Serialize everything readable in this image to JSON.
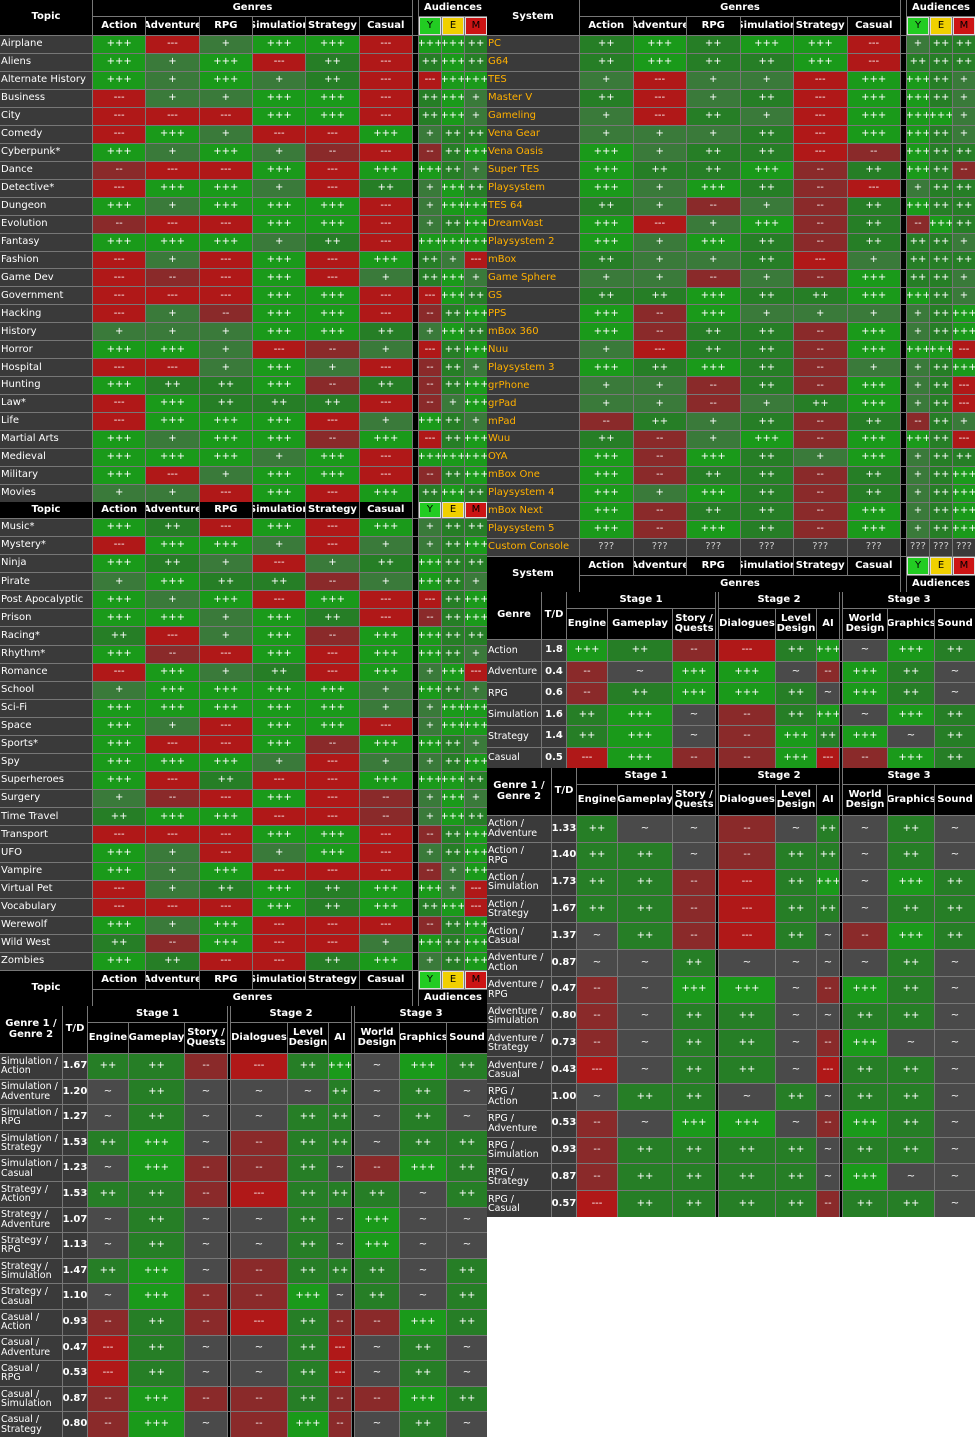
{
  "labels": {
    "topic": "Topic",
    "system": "System",
    "genres": "Genres",
    "audiences": "Audiences",
    "genre": "Genre",
    "genre12": "Genre 1 /\nGenre 2",
    "td": "T/D",
    "stage1": "Stage 1",
    "stage2": "Stage 2",
    "stage3": "Stage 3"
  },
  "genre_cols": [
    "Action",
    "Adventure",
    "RPG",
    "Simulation",
    "Strategy",
    "Casual"
  ],
  "aud_cols": [
    "Y",
    "E",
    "M"
  ],
  "dev_cols": [
    "Engine",
    "Gameplay",
    "Story /\nQuests",
    "Dialogues",
    "Level\nDesign",
    "AI",
    "World\nDesign",
    "Graphics",
    "Sound"
  ],
  "topics_a": [
    [
      "Airplane",
      "+++",
      "---",
      "+",
      "+++",
      "+++",
      "---",
      "+++",
      "+++",
      "++"
    ],
    [
      "Aliens",
      "+++",
      "+",
      "+++",
      "---",
      "++",
      "---",
      "++",
      "+++",
      "++"
    ],
    [
      "Alternate History",
      "+++",
      "+",
      "+++",
      "+",
      "++",
      "---",
      "---",
      "+++",
      "+++"
    ],
    [
      "Business",
      "---",
      "+",
      "+",
      "+++",
      "+++",
      "---",
      "++",
      "+++",
      "+"
    ],
    [
      "City",
      "---",
      "---",
      "---",
      "+++",
      "+++",
      "---",
      "++",
      "+++",
      "+"
    ],
    [
      "Comedy",
      "---",
      "+++",
      "+",
      "---",
      "---",
      "+++",
      "+",
      "++",
      "++"
    ],
    [
      "Cyberpunk*",
      "+++",
      "+",
      "+++",
      "+",
      "--",
      "---",
      "--",
      "++",
      "+++"
    ],
    [
      "Dance",
      "--",
      "---",
      "---",
      "+++",
      "---",
      "+++",
      "+++",
      "++",
      "+"
    ],
    [
      "Detective*",
      "---",
      "+++",
      "+++",
      "+",
      "---",
      "++",
      "+",
      "+++",
      "++"
    ],
    [
      "Dungeon",
      "+++",
      "+",
      "+++",
      "+++",
      "+++",
      "---",
      "+",
      "+++",
      "+++"
    ],
    [
      "Evolution",
      "--",
      "---",
      "---",
      "+++",
      "+++",
      "---",
      "+",
      "++",
      "+++"
    ],
    [
      "Fantasy",
      "+++",
      "+++",
      "+++",
      "+",
      "++",
      "---",
      "+++",
      "+++",
      "+++"
    ],
    [
      "Fashion",
      "---",
      "+",
      "---",
      "+++",
      "---",
      "+++",
      "++",
      "+",
      "---"
    ],
    [
      "Game Dev",
      "---",
      "--",
      "---",
      "+++",
      "---",
      "+",
      "++",
      "+++",
      "+"
    ],
    [
      "Government",
      "---",
      "---",
      "---",
      "+++",
      "+++",
      "---",
      "---",
      "+++",
      "++"
    ],
    [
      "Hacking",
      "---",
      "+",
      "--",
      "+++",
      "+++",
      "---",
      "--",
      "++",
      "+++"
    ],
    [
      "History",
      "+",
      "+",
      "+",
      "+++",
      "+++",
      "++",
      "+",
      "+++",
      "++"
    ],
    [
      "Horror",
      "+++",
      "+++",
      "+",
      "---",
      "--",
      "+",
      "---",
      "++",
      "+++"
    ],
    [
      "Hospital",
      "---",
      "---",
      "+",
      "+++",
      "+",
      "---",
      "--",
      "++",
      "+"
    ],
    [
      "Hunting",
      "+++",
      "++",
      "++",
      "+++",
      "--",
      "++",
      "--",
      "++",
      "+++"
    ],
    [
      "Law*",
      "---",
      "+++",
      "++",
      "++",
      "++",
      "---",
      "--",
      "+",
      "+++"
    ],
    [
      "Life",
      "---",
      "+++",
      "+++",
      "+++",
      "---",
      "+",
      "+++",
      "++",
      "+"
    ],
    [
      "Martial Arts",
      "+++",
      "+",
      "+++",
      "+++",
      "--",
      "+++",
      "---",
      "++",
      "+++"
    ],
    [
      "Medieval",
      "+++",
      "+++",
      "+++",
      "+",
      "+++",
      "---",
      "+++",
      "+++",
      "+++"
    ],
    [
      "Military",
      "+++",
      "---",
      "+",
      "+++",
      "+++",
      "---",
      "--",
      "++",
      "+++"
    ],
    [
      "Movies",
      "+",
      "+",
      "---",
      "+++",
      "---",
      "+++",
      "++",
      "+++",
      "++"
    ]
  ],
  "topics_b": [
    [
      "Music*",
      "+++",
      "++",
      "---",
      "+++",
      "---",
      "+++",
      "+",
      "++",
      "++"
    ],
    [
      "Mystery*",
      "---",
      "+++",
      "+++",
      "+",
      "---",
      "+",
      "+",
      "++",
      "+++"
    ],
    [
      "Ninja",
      "+++",
      "++",
      "+",
      "---",
      "+",
      "++",
      "+++",
      "++",
      "++"
    ],
    [
      "Pirate",
      "+",
      "+++",
      "++",
      "++",
      "--",
      "+",
      "+++",
      "++",
      "+"
    ],
    [
      "Post Apocalyptic",
      "+++",
      "+",
      "+++",
      "---",
      "+++",
      "---",
      "---",
      "++",
      "+++"
    ],
    [
      "Prison",
      "+++",
      "+++",
      "+",
      "+++",
      "++",
      "---",
      "--",
      "++",
      "+++"
    ],
    [
      "Racing*",
      "++",
      "---",
      "+",
      "+++",
      "--",
      "+++",
      "+++",
      "++",
      "++"
    ],
    [
      "Rhythm*",
      "+++",
      "--",
      "---",
      "+++",
      "---",
      "+++",
      "+++",
      "++",
      "+"
    ],
    [
      "Romance",
      "---",
      "+++",
      "+",
      "++",
      "---",
      "+++",
      "+",
      "+++",
      "---"
    ],
    [
      "School",
      "+",
      "+++",
      "+++",
      "+++",
      "+++",
      "+",
      "+++",
      "++",
      "+"
    ],
    [
      "Sci-Fi",
      "+++",
      "+++",
      "+++",
      "+++",
      "+++",
      "+",
      "+",
      "+++",
      "+++"
    ],
    [
      "Space",
      "+++",
      "+",
      "---",
      "+++",
      "+++",
      "---",
      "+",
      "+++",
      "+++"
    ],
    [
      "Sports*",
      "+++",
      "---",
      "---",
      "+++",
      "--",
      "+++",
      "+++",
      "++",
      "+"
    ],
    [
      "Spy",
      "+++",
      "+++",
      "+++",
      "+",
      "---",
      "+",
      "+",
      "++",
      "+++"
    ],
    [
      "Superheroes",
      "+++",
      "---",
      "++",
      "---",
      "---",
      "+++",
      "+++",
      "+++",
      "++"
    ],
    [
      "Surgery",
      "+",
      "--",
      "---",
      "+++",
      "---",
      "--",
      "+",
      "+++",
      "+"
    ],
    [
      "Time Travel",
      "++",
      "+++",
      "+++",
      "---",
      "---",
      "--",
      "+",
      "+++",
      "++"
    ],
    [
      "Transport",
      "---",
      "---",
      "---",
      "+++",
      "+++",
      "---",
      "--",
      "++",
      "+++"
    ],
    [
      "UFO",
      "+++",
      "+",
      "---",
      "+",
      "+++",
      "---",
      "+",
      "++",
      "+++"
    ],
    [
      "Vampire",
      "+++",
      "+",
      "+++",
      "---",
      "---",
      "---",
      "--",
      "+",
      "+++"
    ],
    [
      "Virtual Pet",
      "---",
      "+",
      "++",
      "+++",
      "++",
      "+++",
      "+++",
      "+",
      "---"
    ],
    [
      "Vocabulary",
      "---",
      "---",
      "---",
      "+++",
      "++",
      "+++",
      "++",
      "+++",
      "---"
    ],
    [
      "Werewolf",
      "+++",
      "+",
      "+++",
      "---",
      "---",
      "---",
      "--",
      "++",
      "+++"
    ],
    [
      "Wild West",
      "++",
      "--",
      "+++",
      "---",
      "---",
      "+",
      "+++",
      "++",
      "+++"
    ],
    [
      "Zombies",
      "+++",
      "++",
      "---",
      "---",
      "++",
      "+++",
      "+",
      "++",
      "+++"
    ]
  ],
  "systems": [
    [
      "PC",
      "++",
      "+++",
      "++",
      "+++",
      "+++",
      "---",
      "+",
      "++",
      "++"
    ],
    [
      "G64",
      "++",
      "+++",
      "++",
      "++",
      "+++",
      "---",
      "++",
      "++",
      "++"
    ],
    [
      "TES",
      "+",
      "---",
      "+",
      "+",
      "---",
      "+++",
      "+++",
      "++",
      "+"
    ],
    [
      "Master V",
      "++",
      "---",
      "+",
      "++",
      "---",
      "+++",
      "+++",
      "++",
      "+"
    ],
    [
      "Gameling",
      "+",
      "---",
      "++",
      "+",
      "---",
      "+++",
      "+++",
      "+++",
      "+"
    ],
    [
      "Vena Gear",
      "+",
      "+",
      "+",
      "++",
      "---",
      "+++",
      "+++",
      "++",
      "+"
    ],
    [
      "Vena Oasis",
      "+++",
      "+",
      "++",
      "++",
      "---",
      "--",
      "+++",
      "++",
      "++"
    ],
    [
      "Super TES",
      "+++",
      "++",
      "++",
      "+++",
      "--",
      "++",
      "+++",
      "++",
      "--"
    ],
    [
      "Playsystem",
      "+++",
      "+",
      "+++",
      "++",
      "--",
      "---",
      "+",
      "++",
      "++"
    ],
    [
      "TES 64",
      "++",
      "+",
      "--",
      "+",
      "--",
      "++",
      "+++",
      "++",
      "++"
    ],
    [
      "DreamVast",
      "+++",
      "---",
      "+",
      "+++",
      "--",
      "++",
      "--",
      "+++",
      "++"
    ],
    [
      "Playsystem 2",
      "+++",
      "+",
      "+++",
      "++",
      "--",
      "++",
      "++",
      "++",
      "+"
    ],
    [
      "mBox",
      "++",
      "+",
      "+",
      "++",
      "---",
      "+",
      "++",
      "++",
      "++"
    ],
    [
      "Game Sphere",
      "+",
      "+",
      "--",
      "+",
      "--",
      "+++",
      "++",
      "++",
      "+"
    ],
    [
      "GS",
      "++",
      "++",
      "+++",
      "++",
      "++",
      "+++",
      "+++",
      "++",
      "+"
    ],
    [
      "PPS",
      "+++",
      "--",
      "+++",
      "+",
      "+",
      "+",
      "+",
      "++",
      "+++"
    ],
    [
      "mBox 360",
      "+++",
      "--",
      "++",
      "++",
      "--",
      "+++",
      "+",
      "++",
      "+++"
    ],
    [
      "Nuu",
      "+",
      "---",
      "++",
      "++",
      "--",
      "+++",
      "+++",
      "+++",
      "---"
    ],
    [
      "Playsystem 3",
      "+++",
      "++",
      "+++",
      "++",
      "--",
      "+",
      "+",
      "++",
      "+++"
    ],
    [
      "grPhone",
      "+",
      "+",
      "--",
      "++",
      "--",
      "+++",
      "+",
      "++",
      "---"
    ],
    [
      "grPad",
      "+",
      "+",
      "--",
      "+",
      "++",
      "+++",
      "+",
      "++",
      "---"
    ],
    [
      "mPad",
      "--",
      "++",
      "+",
      "++",
      "--",
      "++",
      "--",
      "++",
      "+"
    ],
    [
      "Wuu",
      "++",
      "--",
      "+",
      "+++",
      "--",
      "+++",
      "+++",
      "++",
      "---"
    ],
    [
      "OYA",
      "+++",
      "--",
      "+++",
      "++",
      "+",
      "+++",
      "+",
      "++",
      "++"
    ],
    [
      "mBox One",
      "+++",
      "--",
      "++",
      "++",
      "--",
      "++",
      "+",
      "++",
      "+++"
    ],
    [
      "Playsystem 4",
      "+++",
      "+",
      "+++",
      "++",
      "--",
      "++",
      "+",
      "++",
      "+++"
    ],
    [
      "mBox Next",
      "+++",
      "--",
      "++",
      "++",
      "--",
      "+++",
      "+",
      "++",
      "+++"
    ],
    [
      "Playsystem 5",
      "+++",
      "--",
      "+++",
      "++",
      "--",
      "+++",
      "+",
      "++",
      "+++"
    ],
    [
      "Custom Console",
      "???",
      "???",
      "???",
      "???",
      "???",
      "???",
      "???",
      "???",
      "???"
    ]
  ],
  "single_genres": [
    [
      "Action",
      "1.8",
      "+++",
      "++",
      "--",
      "---",
      "++",
      "+++",
      "~",
      "+++",
      "++"
    ],
    [
      "Adventure",
      "0.4",
      "--",
      "~",
      "+++",
      "+++",
      "~",
      "--",
      "+++",
      "++",
      "~"
    ],
    [
      "RPG",
      "0.6",
      "--",
      "++",
      "+++",
      "+++",
      "++",
      "~",
      "+++",
      "++",
      "~"
    ],
    [
      "Simulation",
      "1.6",
      "++",
      "+++",
      "~",
      "--",
      "++",
      "+++",
      "~",
      "+++",
      "++"
    ],
    [
      "Strategy",
      "1.4",
      "++",
      "+++",
      "~",
      "--",
      "+++",
      "++",
      "+++",
      "~",
      "++"
    ],
    [
      "Casual",
      "0.5",
      "---",
      "+++",
      "--",
      "--",
      "+++",
      "---",
      "--",
      "+++",
      "++"
    ]
  ],
  "combos_right": [
    [
      "Action /\nAdventure",
      "1.33",
      "++",
      "~",
      "~",
      "--",
      "~",
      "++",
      "~",
      "++",
      "~"
    ],
    [
      "Action /\nRPG",
      "1.40",
      "++",
      "++",
      "~",
      "--",
      "++",
      "++",
      "~",
      "++",
      "~"
    ],
    [
      "Action /\nSimulation",
      "1.73",
      "++",
      "++",
      "--",
      "---",
      "++",
      "+++",
      "~",
      "+++",
      "++"
    ],
    [
      "Action /\nStrategy",
      "1.67",
      "++",
      "++",
      "--",
      "---",
      "++",
      "++",
      "~",
      "++",
      "++"
    ],
    [
      "Action /\nCasual",
      "1.37",
      "~",
      "++",
      "--",
      "---",
      "++",
      "~",
      "--",
      "+++",
      "++"
    ],
    [
      "Adventure /\nAction",
      "0.87",
      "~",
      "~",
      "++",
      "~",
      "~",
      "~",
      "~",
      "++",
      "~"
    ],
    [
      "Adventure /\nRPG",
      "0.47",
      "--",
      "~",
      "+++",
      "+++",
      "~",
      "--",
      "+++",
      "++",
      "~"
    ],
    [
      "Adventure /\nSimulation",
      "0.80",
      "--",
      "~",
      "++",
      "++",
      "~",
      "~",
      "++",
      "++",
      "~"
    ],
    [
      "Adventure /\nStrategy",
      "0.73",
      "--",
      "~",
      "++",
      "++",
      "~",
      "--",
      "+++",
      "~",
      "~"
    ],
    [
      "Adventure /\nCasual",
      "0.43",
      "---",
      "~",
      "++",
      "++",
      "~",
      "---",
      "++",
      "++",
      "~"
    ],
    [
      "RPG /\nAction",
      "1.00",
      "~",
      "++",
      "++",
      "~",
      "++",
      "~",
      "++",
      "++",
      "~"
    ],
    [
      "RPG /\nAdventure",
      "0.53",
      "--",
      "~",
      "+++",
      "+++",
      "~",
      "--",
      "+++",
      "++",
      "~"
    ],
    [
      "RPG /\nSimulation",
      "0.93",
      "--",
      "++",
      "++",
      "++",
      "++",
      "~",
      "++",
      "++",
      "~"
    ],
    [
      "RPG /\nStrategy",
      "0.87",
      "--",
      "++",
      "++",
      "++",
      "++",
      "~",
      "+++",
      "~",
      "~"
    ],
    [
      "RPG /\nCasual",
      "0.57",
      "---",
      "++",
      "++",
      "++",
      "++",
      "--",
      "++",
      "++",
      "~"
    ]
  ],
  "combos_left": [
    [
      "Simulation /\nAction",
      "1.67",
      "++",
      "++",
      "--",
      "---",
      "++",
      "+++",
      "~",
      "+++",
      "++"
    ],
    [
      "Simulation /\nAdventure",
      "1.20",
      "~",
      "++",
      "~",
      "~",
      "~",
      "++",
      "~",
      "++",
      "~"
    ],
    [
      "Simulation /\nRPG",
      "1.27",
      "~",
      "++",
      "~",
      "~",
      "++",
      "++",
      "~",
      "++",
      "~"
    ],
    [
      "Simulation /\nStrategy",
      "1.53",
      "++",
      "+++",
      "~",
      "--",
      "++",
      "++",
      "~",
      "++",
      "++"
    ],
    [
      "Simulation /\nCasual",
      "1.23",
      "~",
      "+++",
      "--",
      "--",
      "++",
      "~",
      "--",
      "+++",
      "++"
    ],
    [
      "Strategy /\nAction",
      "1.53",
      "++",
      "++",
      "--",
      "---",
      "++",
      "++",
      "++",
      "~",
      "++"
    ],
    [
      "Strategy /\nAdventure",
      "1.07",
      "~",
      "++",
      "~",
      "~",
      "++",
      "~",
      "+++",
      "~",
      "~"
    ],
    [
      "Strategy /\nRPG",
      "1.13",
      "~",
      "++",
      "~",
      "~",
      "++",
      "~",
      "+++",
      "~",
      "~"
    ],
    [
      "Strategy /\nSimulation",
      "1.47",
      "++",
      "+++",
      "~",
      "--",
      "++",
      "++",
      "++",
      "~",
      "++"
    ],
    [
      "Strategy /\nCasual",
      "1.10",
      "~",
      "+++",
      "--",
      "--",
      "+++",
      "~",
      "++",
      "~",
      "++"
    ],
    [
      "Casual /\nAction",
      "0.93",
      "--",
      "++",
      "--",
      "---",
      "++",
      "--",
      "--",
      "+++",
      "++"
    ],
    [
      "Casual /\nAdventure",
      "0.47",
      "---",
      "++",
      "~",
      "~",
      "++",
      "---",
      "~",
      "++",
      "~"
    ],
    [
      "Casual /\nRPG",
      "0.53",
      "---",
      "++",
      "~",
      "~",
      "++",
      "---",
      "~",
      "++",
      "~"
    ],
    [
      "Casual /\nSimulation",
      "0.87",
      "--",
      "+++",
      "--",
      "--",
      "++",
      "--",
      "--",
      "+++",
      "++"
    ],
    [
      "Casual /\nStrategy",
      "0.80",
      "--",
      "+++",
      "~",
      "--",
      "+++",
      "--",
      "~",
      "++",
      "~"
    ]
  ]
}
